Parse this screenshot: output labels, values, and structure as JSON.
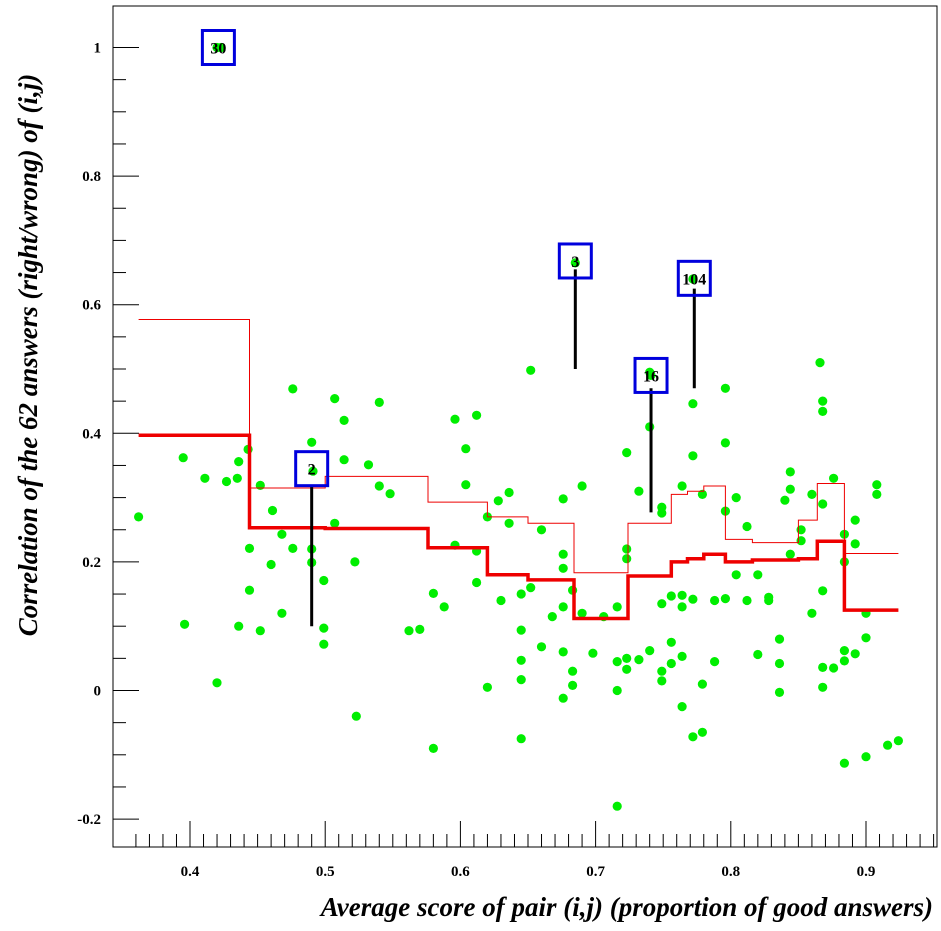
{
  "chart_data": {
    "type": "scatter",
    "xlabel": "Average score of pair (i,j) (proportion of good answers)",
    "ylabel": "Correlation of the 62 answers (right/wrong) of (i,j)",
    "xlim": [
      0.34,
      0.955
    ],
    "ylim": [
      -0.24,
      1.07
    ],
    "x_ticks": [
      "0.4",
      "0.5",
      "0.6",
      "0.7",
      "0.8",
      "0.9"
    ],
    "y_ticks": [
      "-0.2",
      "0",
      "0.2",
      "0.4",
      "0.6",
      "0.8",
      "1"
    ],
    "colors": {
      "points": "#00ee00",
      "step": "#ee0000",
      "box": "#0000dd",
      "line": "#000000"
    },
    "points": [
      [
        0.362,
        0.27
      ],
      [
        0.395,
        0.362
      ],
      [
        0.396,
        0.103
      ],
      [
        0.411,
        0.33
      ],
      [
        0.42,
        0.012
      ],
      [
        0.427,
        0.325
      ],
      [
        0.435,
        0.33
      ],
      [
        0.436,
        0.356
      ],
      [
        0.436,
        0.1
      ],
      [
        0.443,
        0.375
      ],
      [
        0.444,
        0.221
      ],
      [
        0.444,
        0.156
      ],
      [
        0.452,
        0.319
      ],
      [
        0.452,
        0.093
      ],
      [
        0.46,
        0.196
      ],
      [
        0.461,
        0.28
      ],
      [
        0.468,
        0.243
      ],
      [
        0.468,
        0.12
      ],
      [
        0.476,
        0.469
      ],
      [
        0.476,
        0.221
      ],
      [
        0.49,
        0.386
      ],
      [
        0.491,
        0.341
      ],
      [
        0.49,
        0.22
      ],
      [
        0.49,
        0.199
      ],
      [
        0.499,
        0.171
      ],
      [
        0.499,
        0.097
      ],
      [
        0.499,
        0.072
      ],
      [
        0.507,
        0.454
      ],
      [
        0.507,
        0.26
      ],
      [
        0.514,
        0.42
      ],
      [
        0.514,
        0.359
      ],
      [
        0.522,
        0.2
      ],
      [
        0.523,
        -0.04
      ],
      [
        0.532,
        0.351
      ],
      [
        0.54,
        0.448
      ],
      [
        0.54,
        0.318
      ],
      [
        0.548,
        0.306
      ],
      [
        0.562,
        0.093
      ],
      [
        0.57,
        0.095
      ],
      [
        0.58,
        0.151
      ],
      [
        0.58,
        -0.09
      ],
      [
        0.588,
        0.13
      ],
      [
        0.596,
        0.422
      ],
      [
        0.596,
        0.226
      ],
      [
        0.604,
        0.32
      ],
      [
        0.604,
        0.376
      ],
      [
        0.612,
        0.428
      ],
      [
        0.612,
        0.217
      ],
      [
        0.612,
        0.168
      ],
      [
        0.62,
        0.27
      ],
      [
        0.62,
        0.005
      ],
      [
        0.628,
        0.295
      ],
      [
        0.63,
        0.14
      ],
      [
        0.636,
        0.308
      ],
      [
        0.636,
        0.26
      ],
      [
        0.645,
        0.15
      ],
      [
        0.645,
        0.094
      ],
      [
        0.645,
        0.047
      ],
      [
        0.645,
        0.017
      ],
      [
        0.645,
        -0.075
      ],
      [
        0.652,
        0.498
      ],
      [
        0.652,
        0.16
      ],
      [
        0.66,
        0.25
      ],
      [
        0.66,
        0.068
      ],
      [
        0.668,
        0.115
      ],
      [
        0.676,
        0.298
      ],
      [
        0.676,
        0.212
      ],
      [
        0.676,
        0.19
      ],
      [
        0.676,
        0.13
      ],
      [
        0.676,
        0.06
      ],
      [
        0.676,
        -0.012
      ],
      [
        0.683,
        0.156
      ],
      [
        0.683,
        0.03
      ],
      [
        0.683,
        0.008
      ],
      [
        0.69,
        0.318
      ],
      [
        0.69,
        0.12
      ],
      [
        0.698,
        0.058
      ],
      [
        0.706,
        0.115
      ],
      [
        0.716,
        -0.18
      ],
      [
        0.716,
        0.13
      ],
      [
        0.716,
        0.045
      ],
      [
        0.716,
        0.0
      ],
      [
        0.723,
        0.37
      ],
      [
        0.723,
        0.22
      ],
      [
        0.723,
        0.205
      ],
      [
        0.723,
        0.05
      ],
      [
        0.723,
        0.033
      ],
      [
        0.732,
        0.048
      ],
      [
        0.732,
        0.31
      ],
      [
        0.74,
        0.062
      ],
      [
        0.74,
        0.41
      ],
      [
        0.74,
        0.495
      ],
      [
        0.749,
        0.276
      ],
      [
        0.749,
        0.285
      ],
      [
        0.749,
        0.135
      ],
      [
        0.749,
        0.03
      ],
      [
        0.749,
        0.015
      ],
      [
        0.756,
        0.075
      ],
      [
        0.756,
        0.147
      ],
      [
        0.756,
        0.042
      ],
      [
        0.764,
        0.318
      ],
      [
        0.764,
        0.148
      ],
      [
        0.764,
        0.13
      ],
      [
        0.764,
        0.053
      ],
      [
        0.764,
        -0.025
      ],
      [
        0.772,
        0.446
      ],
      [
        0.772,
        0.365
      ],
      [
        0.772,
        0.142
      ],
      [
        0.772,
        -0.072
      ],
      [
        0.772,
        0.64
      ],
      [
        0.779,
        0.305
      ],
      [
        0.779,
        0.01
      ],
      [
        0.779,
        -0.065
      ],
      [
        0.788,
        0.14
      ],
      [
        0.788,
        0.045
      ],
      [
        0.796,
        0.47
      ],
      [
        0.796,
        0.385
      ],
      [
        0.796,
        0.279
      ],
      [
        0.796,
        0.143
      ],
      [
        0.804,
        0.3
      ],
      [
        0.804,
        0.18
      ],
      [
        0.812,
        0.255
      ],
      [
        0.812,
        0.14
      ],
      [
        0.82,
        0.18
      ],
      [
        0.82,
        0.056
      ],
      [
        0.828,
        0.14
      ],
      [
        0.828,
        0.145
      ],
      [
        0.836,
        0.08
      ],
      [
        0.836,
        0.042
      ],
      [
        0.836,
        -0.003
      ],
      [
        0.84,
        0.296
      ],
      [
        0.844,
        0.34
      ],
      [
        0.844,
        0.313
      ],
      [
        0.844,
        0.212
      ],
      [
        0.852,
        0.233
      ],
      [
        0.852,
        0.25
      ],
      [
        0.86,
        0.305
      ],
      [
        0.86,
        0.12
      ],
      [
        0.866,
        0.51
      ],
      [
        0.868,
        0.45
      ],
      [
        0.868,
        0.434
      ],
      [
        0.868,
        0.29
      ],
      [
        0.868,
        0.155
      ],
      [
        0.868,
        0.036
      ],
      [
        0.868,
        0.005
      ],
      [
        0.876,
        0.33
      ],
      [
        0.876,
        0.035
      ],
      [
        0.884,
        0.243
      ],
      [
        0.884,
        0.2
      ],
      [
        0.884,
        0.062
      ],
      [
        0.884,
        0.046
      ],
      [
        0.884,
        -0.113
      ],
      [
        0.892,
        0.265
      ],
      [
        0.892,
        0.228
      ],
      [
        0.892,
        0.057
      ],
      [
        0.9,
        0.12
      ],
      [
        0.9,
        0.082
      ],
      [
        0.9,
        -0.103
      ],
      [
        0.908,
        0.32
      ],
      [
        0.908,
        0.305
      ],
      [
        0.916,
        -0.085
      ],
      [
        0.924,
        -0.078
      ],
      [
        0.42,
        1.0
      ],
      [
        0.423,
        1.0
      ],
      [
        0.685,
        0.665
      ],
      [
        0.741,
        0.49
      ]
    ],
    "step_thick": [
      [
        0.362,
        0.397
      ],
      [
        0.444,
        0.253
      ],
      [
        0.5,
        0.252
      ],
      [
        0.576,
        0.222
      ],
      [
        0.62,
        0.18
      ],
      [
        0.65,
        0.172
      ],
      [
        0.684,
        0.112
      ],
      [
        0.724,
        0.178
      ],
      [
        0.756,
        0.2
      ],
      [
        0.768,
        0.205
      ],
      [
        0.78,
        0.212
      ],
      [
        0.796,
        0.2
      ],
      [
        0.816,
        0.203
      ],
      [
        0.85,
        0.205
      ],
      [
        0.864,
        0.232
      ],
      [
        0.884,
        0.125
      ],
      [
        0.924,
        0.125
      ]
    ],
    "step_thin": [
      [
        0.362,
        0.577
      ],
      [
        0.444,
        0.315
      ],
      [
        0.5,
        0.333
      ],
      [
        0.576,
        0.293
      ],
      [
        0.62,
        0.27
      ],
      [
        0.65,
        0.26
      ],
      [
        0.684,
        0.183
      ],
      [
        0.724,
        0.26
      ],
      [
        0.756,
        0.305
      ],
      [
        0.768,
        0.31
      ],
      [
        0.78,
        0.318
      ],
      [
        0.796,
        0.235
      ],
      [
        0.816,
        0.23
      ],
      [
        0.85,
        0.265
      ],
      [
        0.864,
        0.322
      ],
      [
        0.884,
        0.213
      ],
      [
        0.924,
        0.213
      ]
    ],
    "annotations": [
      {
        "label": "30",
        "x": 0.421,
        "y": 1.0,
        "line": null
      },
      {
        "label": "2",
        "x": 0.49,
        "y": 0.345,
        "line": [
          0.32,
          0.1
        ]
      },
      {
        "label": "3",
        "x": 0.685,
        "y": 0.668,
        "line": [
          0.655,
          0.5
        ]
      },
      {
        "label": "16",
        "x": 0.741,
        "y": 0.49,
        "line": [
          0.47,
          0.277
        ]
      },
      {
        "label": "104",
        "x": 0.773,
        "y": 0.641,
        "line": [
          0.625,
          0.47
        ]
      }
    ]
  }
}
